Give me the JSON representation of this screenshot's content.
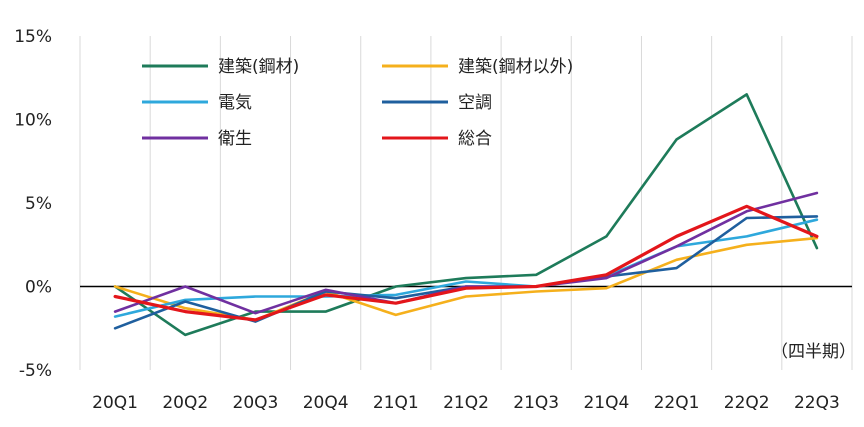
{
  "chart_data": {
    "type": "line",
    "title": "",
    "xlabel": "",
    "ylabel": "",
    "categories": [
      "20Q1",
      "20Q2",
      "20Q3",
      "20Q4",
      "21Q1",
      "21Q2",
      "21Q3",
      "21Q4",
      "22Q1",
      "22Q2",
      "22Q3"
    ],
    "y_ticks": [
      "15%",
      "10%",
      "5%",
      "0%",
      "-5%"
    ],
    "ylim": [
      -5,
      15
    ],
    "grid": "vertical",
    "legend_position": "top-left",
    "note": "（四半期）",
    "series": [
      {
        "name": "建築(鋼材)",
        "color": "#1e7b5a",
        "values": [
          0.0,
          -2.9,
          -1.5,
          -1.5,
          0.0,
          0.5,
          0.7,
          3.0,
          8.8,
          11.5,
          2.3
        ]
      },
      {
        "name": "建築(鋼材以外)",
        "color": "#f5b01c",
        "values": [
          0.0,
          -1.3,
          -2.0,
          -0.3,
          -1.7,
          -0.6,
          -0.3,
          -0.1,
          1.6,
          2.5,
          2.9
        ]
      },
      {
        "name": "電気",
        "color": "#2ea8dc",
        "values": [
          -1.8,
          -0.8,
          -0.6,
          -0.6,
          -0.5,
          0.3,
          0.0,
          0.6,
          2.4,
          3.0,
          4.0
        ]
      },
      {
        "name": "空調",
        "color": "#1f5f9e",
        "values": [
          -2.5,
          -0.9,
          -2.1,
          -0.3,
          -0.7,
          0.0,
          0.0,
          0.6,
          1.1,
          4.1,
          4.2
        ]
      },
      {
        "name": "衛生",
        "color": "#7030a0",
        "values": [
          -1.5,
          0.0,
          -1.6,
          -0.2,
          -1.0,
          0.0,
          0.0,
          0.5,
          2.4,
          4.5,
          5.6
        ]
      },
      {
        "name": "総合",
        "color": "#e3161b",
        "values": [
          -0.6,
          -1.5,
          -2.0,
          -0.5,
          -1.0,
          -0.1,
          0.0,
          0.7,
          3.0,
          4.8,
          3.0
        ]
      }
    ]
  }
}
